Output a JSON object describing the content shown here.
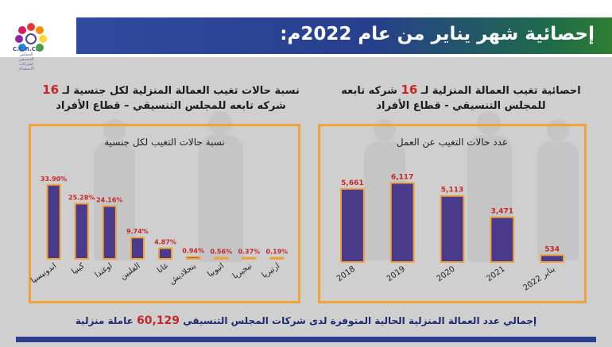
{
  "slide_title": "إحصائية شهر يناير من عام 2022م:",
  "logo": {
    "text": "C.C.R.C.",
    "subtitle": "المجلس التنسيقي لشركات الاستقدام"
  },
  "left_panel": {
    "heading_line1_before": "نسبة حالات تغيب العمالة المنزلية لكل جنسية لـ",
    "heading_num": "16",
    "heading_line2": "شركه تابعه للمجلس التنسيقي – قطاع الأفراد"
  },
  "right_panel": {
    "heading_line1_before": "احصائية تغيب العمالة المنزلية لـ",
    "heading_num": "16",
    "heading_line1_after": "شركه تابعه",
    "heading_line2": "للمجلس التنسيقي - قطاع الأفراد"
  },
  "footer": {
    "before": "إجمالي عدد العمالة المنزلية الحالية المتوفرة لدى شركات المجلس التنسيقي",
    "num": "60,129",
    "after": "عاملة منزلية"
  },
  "colors": {
    "bar": "#4a3a8c",
    "bar_stroke": "#f0a33a",
    "label": "#c62828",
    "box": "#f0a33a"
  },
  "chart_data": [
    {
      "type": "bar",
      "title": "نسبة حالات التغيب لكل جنسية",
      "categories": [
        "اندونيسيا",
        "كينيا",
        "اوغندا",
        "الفلبين",
        "غانا",
        "بنجلاديش",
        "اثيوبيا",
        "نيجيريا",
        "ارتيريا"
      ],
      "values": [
        33.9,
        25.28,
        24.16,
        9.74,
        4.87,
        0.94,
        0.56,
        0.37,
        0.19
      ],
      "value_labels": [
        "33.90%",
        "25.28%",
        "24.16%",
        "9.74%",
        "4.87%",
        "0.94%",
        "0.56%",
        "0.37%",
        "0.19%"
      ],
      "ylim": [
        0,
        40
      ],
      "grid": false,
      "legend": "none"
    },
    {
      "type": "bar",
      "title": "عدد حالات التغيب عن العمل",
      "categories": [
        "2018",
        "2019",
        "2020",
        "2021",
        "يناير 2022"
      ],
      "values": [
        5661,
        6117,
        5113,
        3471,
        534
      ],
      "value_labels": [
        "5,661",
        "6,117",
        "5,113",
        "3,471",
        "534"
      ],
      "ylim": [
        0,
        7000
      ],
      "grid": false,
      "legend": "none"
    }
  ]
}
